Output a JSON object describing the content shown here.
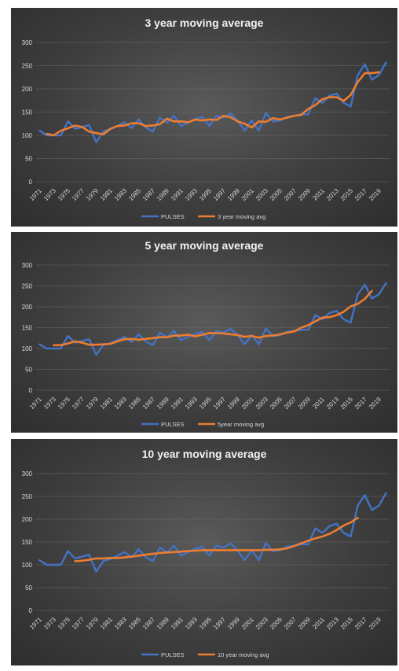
{
  "colors": {
    "pulses": "#4472c4",
    "moving_avg": "#ed7d31",
    "grid": "#6b6b6b",
    "text": "#d9d9d9"
  },
  "chart_data": [
    {
      "type": "line",
      "title": "3 year moving average",
      "x": [
        1971,
        1972,
        1973,
        1974,
        1975,
        1976,
        1977,
        1978,
        1979,
        1980,
        1981,
        1982,
        1983,
        1984,
        1985,
        1986,
        1987,
        1988,
        1989,
        1990,
        1991,
        1992,
        1993,
        1994,
        1995,
        1996,
        1997,
        1998,
        1999,
        2000,
        2001,
        2002,
        2003,
        2004,
        2005,
        2006,
        2007,
        2008,
        2009,
        2010,
        2011,
        2012,
        2013,
        2014,
        2015,
        2016,
        2017,
        2018,
        2019,
        2020
      ],
      "xtick_labels": [
        "1971",
        "1973",
        "1975",
        "1977",
        "1979",
        "1981",
        "1983",
        "1985",
        "1987",
        "1989",
        "1991",
        "1993",
        "1995",
        "1997",
        "1999",
        "2001",
        "2003",
        "2005",
        "2007",
        "2009",
        "2011",
        "2013",
        "2015",
        "2017",
        "2019"
      ],
      "ylim": [
        0,
        300
      ],
      "yticks": [
        0,
        50,
        100,
        150,
        200,
        250,
        300
      ],
      "grid": true,
      "legend_position": "bottom",
      "series": [
        {
          "name": "PULSES",
          "values": [
            110,
            100,
            100,
            100,
            130,
            114,
            118,
            122,
            85,
            108,
            113,
            120,
            128,
            116,
            134,
            117,
            108,
            138,
            127,
            142,
            120,
            128,
            135,
            140,
            120,
            142,
            138,
            147,
            132,
            110,
            132,
            110,
            148,
            130,
            132,
            140,
            142,
            145,
            145,
            180,
            170,
            185,
            190,
            170,
            162,
            230,
            253,
            220,
            230,
            257
          ]
        },
        {
          "name": "3 year moving avg",
          "values": [
            null,
            103,
            100,
            110,
            115,
            121,
            118,
            108,
            105,
            102,
            114,
            120,
            121,
            126,
            126,
            120,
            121,
            124,
            136,
            130,
            130,
            128,
            134,
            132,
            134,
            133,
            142,
            139,
            130,
            125,
            117,
            130,
            129,
            137,
            134,
            138,
            142,
            144,
            157,
            165,
            178,
            182,
            182,
            174,
            187,
            215,
            234,
            234,
            236,
            null
          ]
        }
      ]
    },
    {
      "type": "line",
      "title": "5 year moving average",
      "x": [
        1971,
        1972,
        1973,
        1974,
        1975,
        1976,
        1977,
        1978,
        1979,
        1980,
        1981,
        1982,
        1983,
        1984,
        1985,
        1986,
        1987,
        1988,
        1989,
        1990,
        1991,
        1992,
        1993,
        1994,
        1995,
        1996,
        1997,
        1998,
        1999,
        2000,
        2001,
        2002,
        2003,
        2004,
        2005,
        2006,
        2007,
        2008,
        2009,
        2010,
        2011,
        2012,
        2013,
        2014,
        2015,
        2016,
        2017,
        2018,
        2019,
        2020
      ],
      "xtick_labels": [
        "1971",
        "1973",
        "1975",
        "1977",
        "1979",
        "1981",
        "1983",
        "1985",
        "1987",
        "1989",
        "1991",
        "1993",
        "1995",
        "1997",
        "1999",
        "2001",
        "2003",
        "2005",
        "2007",
        "2009",
        "2011",
        "2013",
        "2015",
        "2017",
        "2019"
      ],
      "ylim": [
        0,
        300
      ],
      "yticks": [
        0,
        50,
        100,
        150,
        200,
        250,
        300
      ],
      "grid": true,
      "legend_position": "bottom",
      "series": [
        {
          "name": "PULSES",
          "values": [
            110,
            100,
            100,
            100,
            130,
            114,
            118,
            122,
            85,
            108,
            113,
            120,
            128,
            116,
            134,
            117,
            108,
            138,
            127,
            142,
            120,
            128,
            135,
            140,
            120,
            142,
            138,
            147,
            132,
            110,
            132,
            110,
            148,
            130,
            132,
            140,
            142,
            145,
            145,
            180,
            170,
            185,
            190,
            170,
            162,
            230,
            253,
            220,
            230,
            257
          ]
        },
        {
          "name": "5year moving avg",
          "values": [
            null,
            null,
            108,
            108,
            112,
            117,
            114,
            109,
            109,
            110,
            111,
            117,
            122,
            123,
            121,
            123,
            125,
            127,
            127,
            131,
            131,
            133,
            129,
            133,
            137,
            137,
            136,
            134,
            132,
            128,
            130,
            126,
            130,
            131,
            134,
            138,
            141,
            150,
            156,
            165,
            174,
            175,
            180,
            188,
            201,
            207,
            219,
            238,
            null,
            null
          ]
        }
      ]
    },
    {
      "type": "line",
      "title": "10 year moving average",
      "x": [
        1971,
        1972,
        1973,
        1974,
        1975,
        1976,
        1977,
        1978,
        1979,
        1980,
        1981,
        1982,
        1983,
        1984,
        1985,
        1986,
        1987,
        1988,
        1989,
        1990,
        1991,
        1992,
        1993,
        1994,
        1995,
        1996,
        1997,
        1998,
        1999,
        2000,
        2001,
        2002,
        2003,
        2004,
        2005,
        2006,
        2007,
        2008,
        2009,
        2010,
        2011,
        2012,
        2013,
        2014,
        2015,
        2016,
        2017,
        2018,
        2019,
        2020
      ],
      "xtick_labels": [
        "1971",
        "1973",
        "1975",
        "1977",
        "1979",
        "1981",
        "1983",
        "1985",
        "1987",
        "1989",
        "1991",
        "1993",
        "1995",
        "1997",
        "1999",
        "2001",
        "2003",
        "2005",
        "2007",
        "2009",
        "2011",
        "2013",
        "2015",
        "2017",
        "2019"
      ],
      "ylim": [
        0,
        300
      ],
      "yticks": [
        0,
        50,
        100,
        150,
        200,
        250,
        300
      ],
      "grid": true,
      "legend_position": "bottom",
      "series": [
        {
          "name": "PULSES",
          "values": [
            110,
            100,
            100,
            100,
            130,
            114,
            118,
            122,
            85,
            108,
            113,
            120,
            128,
            116,
            134,
            117,
            108,
            138,
            127,
            142,
            120,
            128,
            135,
            140,
            120,
            142,
            138,
            147,
            132,
            110,
            132,
            110,
            148,
            130,
            132,
            140,
            142,
            145,
            145,
            180,
            170,
            185,
            190,
            170,
            162,
            230,
            253,
            220,
            230,
            257
          ]
        },
        {
          "name": "10 year moving avg",
          "values": [
            null,
            null,
            null,
            null,
            null,
            108,
            109,
            111,
            114,
            114,
            115,
            115,
            116,
            118,
            120,
            122,
            124,
            126,
            127,
            128,
            129,
            130,
            131,
            132,
            132,
            132,
            132,
            132,
            132,
            132,
            132,
            132,
            133,
            133,
            134,
            136,
            141,
            147,
            153,
            158,
            162,
            168,
            176,
            186,
            193,
            203,
            null,
            null,
            null,
            null
          ]
        }
      ]
    }
  ]
}
